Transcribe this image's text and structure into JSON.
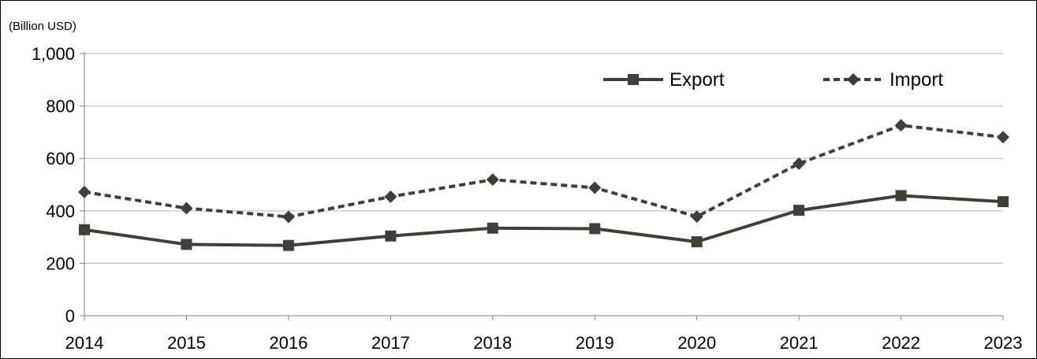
{
  "chart_data": {
    "type": "line",
    "title": "",
    "unit_label": "(Billion USD)",
    "xlabel": "",
    "ylabel": "",
    "categories": [
      "2014",
      "2015",
      "2016",
      "2017",
      "2018",
      "2019",
      "2020",
      "2021",
      "2022",
      "2023"
    ],
    "ylim": [
      0,
      1000
    ],
    "yticks": [
      0,
      200,
      400,
      600,
      800,
      1000
    ],
    "ytick_labels": [
      "0",
      "200",
      "400",
      "600",
      "800",
      "1,000"
    ],
    "grid": "horizontal",
    "legend_position": "top-right",
    "series": [
      {
        "name": "Export",
        "values": [
          328,
          272,
          268,
          304,
          334,
          332,
          282,
          402,
          458,
          435
        ],
        "color": "#3f3f35",
        "line_style": "solid",
        "marker": "square"
      },
      {
        "name": "Import",
        "values": [
          472,
          410,
          377,
          454,
          519,
          488,
          378,
          580,
          726,
          681
        ],
        "color": "#3f3f35",
        "line_style": "dashed",
        "marker": "diamond"
      }
    ]
  }
}
